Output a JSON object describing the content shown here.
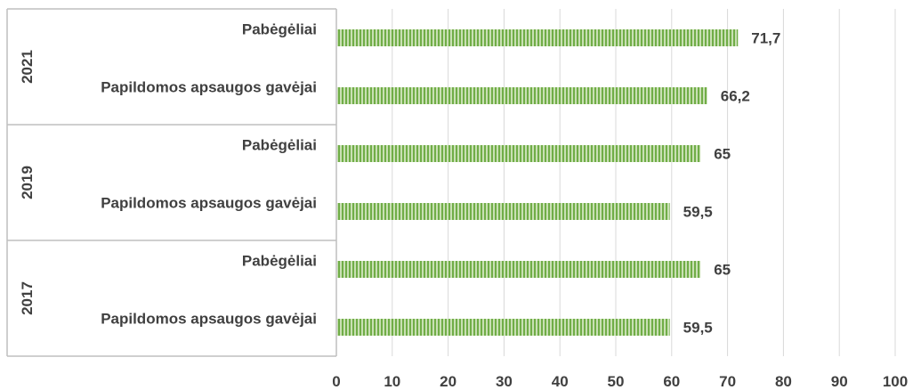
{
  "chart_data": {
    "type": "bar",
    "orientation": "horizontal",
    "grid": true,
    "xlim": [
      0,
      100
    ],
    "x_ticks": [
      "0",
      "10",
      "20",
      "30",
      "40",
      "50",
      "60",
      "70",
      "80",
      "90",
      "100"
    ],
    "groups": [
      {
        "label": "2021",
        "bars": [
          {
            "category": "Pabėgėliai",
            "value": 71.7,
            "label": "71,7"
          },
          {
            "category": "Papildomos apsaugos gavėjai",
            "value": 66.2,
            "label": "66,2"
          }
        ]
      },
      {
        "label": "2019",
        "bars": [
          {
            "category": "Pabėgėliai",
            "value": 65,
            "label": "65"
          },
          {
            "category": "Papildomos apsaugos gavėjai",
            "value": 59.5,
            "label": "59,5"
          }
        ]
      },
      {
        "label": "2017",
        "bars": [
          {
            "category": "Pabėgėliai",
            "value": 65,
            "label": "65"
          },
          {
            "category": "Papildomos apsaugos gavėjai",
            "value": 59.5,
            "label": "59,5"
          }
        ]
      }
    ],
    "bar_color": "#70ad47"
  }
}
